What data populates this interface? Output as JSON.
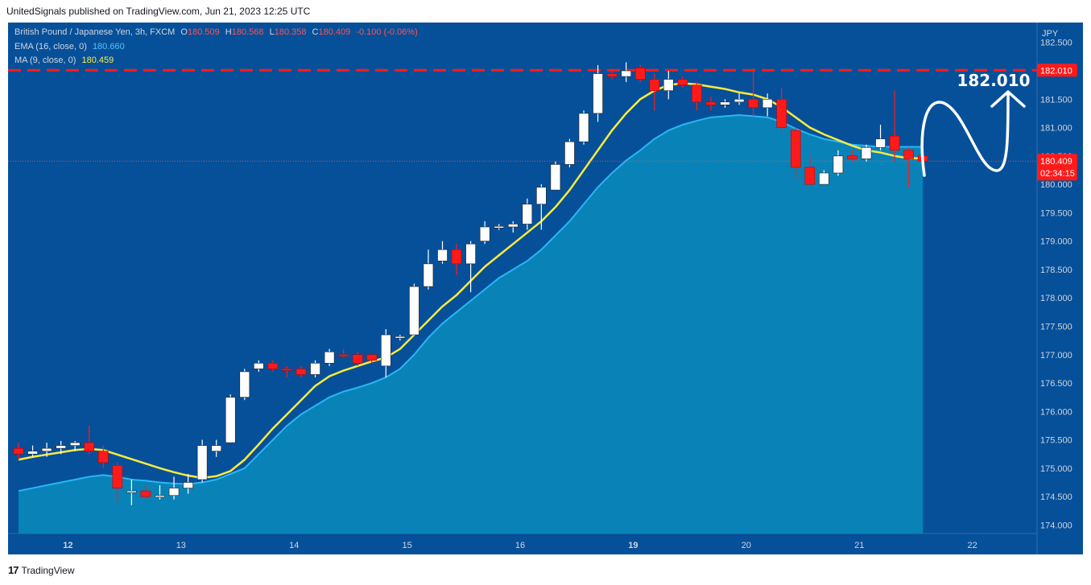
{
  "header": {
    "publisher_line": "UnitedSignals published on TradingView.com, Jun 21, 2023 12:25 UTC"
  },
  "legend": {
    "symbol": "British Pound / Japanese Yen, 3h, FXCM",
    "open_label": "O",
    "open": "180.509",
    "high_label": "H",
    "high": "180.568",
    "low_label": "L",
    "low": "180.358",
    "close_label": "C",
    "close": "180.409",
    "change": "-0.100 (-0.06%)",
    "ema_label": "EMA (16, close, 0)",
    "ema_value": "180.660",
    "ma_label": "MA (9, close, 0)",
    "ma_value": "180.459"
  },
  "footer": {
    "brand": "TradingView"
  },
  "chart_data": {
    "type": "candlestick",
    "currency": "JPY",
    "ylim": [
      173.85,
      182.85
    ],
    "y_ticks": [
      "182.500",
      "182.010",
      "181.500",
      "181.000",
      "180.500",
      "180.000",
      "179.500",
      "179.000",
      "178.500",
      "178.000",
      "177.500",
      "177.000",
      "176.500",
      "176.000",
      "175.500",
      "175.000",
      "174.500",
      "174.000"
    ],
    "x_ticks": [
      {
        "label": "12",
        "index": 3.5,
        "bold": true
      },
      {
        "label": "13",
        "index": 11.5
      },
      {
        "label": "14",
        "index": 19.5
      },
      {
        "label": "15",
        "index": 27.5
      },
      {
        "label": "16",
        "index": 35.5
      },
      {
        "label": "19",
        "index": 43.5,
        "bold": true
      },
      {
        "label": "20",
        "index": 51.5
      },
      {
        "label": "21",
        "index": 59.5
      },
      {
        "label": "22",
        "index": 67.5
      }
    ],
    "resistance_line": {
      "value": 182.01,
      "label": "182.010",
      "color": "#ff1a1a"
    },
    "last_price": {
      "value": 180.409,
      "label": "180.409",
      "countdown": "02:34:15"
    },
    "candles": [
      {
        "o": 175.35,
        "h": 175.45,
        "l": 175.15,
        "c": 175.25
      },
      {
        "o": 175.25,
        "h": 175.4,
        "l": 175.2,
        "c": 175.3
      },
      {
        "o": 175.3,
        "h": 175.45,
        "l": 175.2,
        "c": 175.35
      },
      {
        "o": 175.35,
        "h": 175.48,
        "l": 175.25,
        "c": 175.4
      },
      {
        "o": 175.4,
        "h": 175.48,
        "l": 175.3,
        "c": 175.45
      },
      {
        "o": 175.45,
        "h": 175.75,
        "l": 175.25,
        "c": 175.3
      },
      {
        "o": 175.3,
        "h": 175.4,
        "l": 175.0,
        "c": 175.1
      },
      {
        "o": 175.05,
        "h": 175.1,
        "l": 174.4,
        "c": 174.65
      },
      {
        "o": 174.6,
        "h": 174.8,
        "l": 174.35,
        "c": 174.6
      },
      {
        "o": 174.6,
        "h": 174.7,
        "l": 174.45,
        "c": 174.5
      },
      {
        "o": 174.5,
        "h": 174.7,
        "l": 174.45,
        "c": 174.52
      },
      {
        "o": 174.52,
        "h": 174.85,
        "l": 174.45,
        "c": 174.65
      },
      {
        "o": 174.65,
        "h": 174.9,
        "l": 174.55,
        "c": 174.75
      },
      {
        "o": 174.8,
        "h": 175.5,
        "l": 174.75,
        "c": 175.4
      },
      {
        "o": 175.3,
        "h": 175.5,
        "l": 175.2,
        "c": 175.4
      },
      {
        "o": 175.45,
        "h": 176.3,
        "l": 175.45,
        "c": 176.25
      },
      {
        "o": 176.25,
        "h": 176.75,
        "l": 176.2,
        "c": 176.7
      },
      {
        "o": 176.75,
        "h": 176.9,
        "l": 176.7,
        "c": 176.85
      },
      {
        "o": 176.85,
        "h": 176.9,
        "l": 176.7,
        "c": 176.75
      },
      {
        "o": 176.75,
        "h": 176.8,
        "l": 176.6,
        "c": 176.73
      },
      {
        "o": 176.75,
        "h": 176.8,
        "l": 176.6,
        "c": 176.65
      },
      {
        "o": 176.65,
        "h": 176.9,
        "l": 176.6,
        "c": 176.85
      },
      {
        "o": 176.85,
        "h": 177.1,
        "l": 176.8,
        "c": 177.05
      },
      {
        "o": 177.0,
        "h": 177.1,
        "l": 176.95,
        "c": 176.98
      },
      {
        "o": 177.0,
        "h": 177.05,
        "l": 176.8,
        "c": 176.85
      },
      {
        "o": 177.0,
        "h": 177.0,
        "l": 176.85,
        "c": 176.9
      },
      {
        "o": 176.8,
        "h": 177.45,
        "l": 176.6,
        "c": 177.35
      },
      {
        "o": 177.3,
        "h": 177.35,
        "l": 177.25,
        "c": 177.32
      },
      {
        "o": 177.35,
        "h": 178.25,
        "l": 177.35,
        "c": 178.2
      },
      {
        "o": 178.2,
        "h": 178.85,
        "l": 178.15,
        "c": 178.6
      },
      {
        "o": 178.65,
        "h": 179.0,
        "l": 178.6,
        "c": 178.85
      },
      {
        "o": 178.85,
        "h": 178.95,
        "l": 178.4,
        "c": 178.6
      },
      {
        "o": 178.6,
        "h": 179.0,
        "l": 178.1,
        "c": 178.95
      },
      {
        "o": 179.0,
        "h": 179.35,
        "l": 178.95,
        "c": 179.25
      },
      {
        "o": 179.25,
        "h": 179.3,
        "l": 179.2,
        "c": 179.26
      },
      {
        "o": 179.25,
        "h": 179.35,
        "l": 179.15,
        "c": 179.3
      },
      {
        "o": 179.3,
        "h": 179.75,
        "l": 179.2,
        "c": 179.65
      },
      {
        "o": 179.65,
        "h": 180.0,
        "l": 179.2,
        "c": 179.95
      },
      {
        "o": 179.9,
        "h": 180.4,
        "l": 179.9,
        "c": 180.35
      },
      {
        "o": 180.35,
        "h": 180.8,
        "l": 180.3,
        "c": 180.75
      },
      {
        "o": 180.75,
        "h": 181.3,
        "l": 180.7,
        "c": 181.25
      },
      {
        "o": 181.25,
        "h": 182.1,
        "l": 181.1,
        "c": 181.95
      },
      {
        "o": 181.95,
        "h": 182.0,
        "l": 181.85,
        "c": 181.9
      },
      {
        "o": 181.9,
        "h": 182.15,
        "l": 181.8,
        "c": 182.0
      },
      {
        "o": 182.05,
        "h": 182.1,
        "l": 181.8,
        "c": 181.85
      },
      {
        "o": 181.85,
        "h": 181.95,
        "l": 181.3,
        "c": 181.65
      },
      {
        "o": 181.65,
        "h": 182.0,
        "l": 181.5,
        "c": 181.85
      },
      {
        "o": 181.85,
        "h": 181.9,
        "l": 181.7,
        "c": 181.75
      },
      {
        "o": 181.75,
        "h": 181.8,
        "l": 181.3,
        "c": 181.45
      },
      {
        "o": 181.45,
        "h": 181.55,
        "l": 181.3,
        "c": 181.4
      },
      {
        "o": 181.4,
        "h": 181.5,
        "l": 181.35,
        "c": 181.45
      },
      {
        "o": 181.45,
        "h": 181.6,
        "l": 181.4,
        "c": 181.5
      },
      {
        "o": 181.5,
        "h": 182.05,
        "l": 181.2,
        "c": 181.35
      },
      {
        "o": 181.35,
        "h": 181.6,
        "l": 181.2,
        "c": 181.5
      },
      {
        "o": 181.5,
        "h": 181.7,
        "l": 180.9,
        "c": 181.0
      },
      {
        "o": 180.95,
        "h": 181.0,
        "l": 180.1,
        "c": 180.3
      },
      {
        "o": 180.3,
        "h": 180.5,
        "l": 180.0,
        "c": 180.0
      },
      {
        "o": 180.0,
        "h": 180.25,
        "l": 180.0,
        "c": 180.2
      },
      {
        "o": 180.2,
        "h": 180.6,
        "l": 180.15,
        "c": 180.5
      },
      {
        "o": 180.5,
        "h": 180.6,
        "l": 180.4,
        "c": 180.45
      },
      {
        "o": 180.45,
        "h": 180.7,
        "l": 180.4,
        "c": 180.65
      },
      {
        "o": 180.65,
        "h": 181.05,
        "l": 180.6,
        "c": 180.8
      },
      {
        "o": 180.85,
        "h": 181.65,
        "l": 180.4,
        "c": 180.6
      },
      {
        "o": 180.6,
        "h": 180.65,
        "l": 179.95,
        "c": 180.45
      },
      {
        "o": 180.5,
        "h": 180.57,
        "l": 180.36,
        "c": 180.41
      }
    ],
    "ma": [
      175.15,
      175.2,
      175.24,
      175.28,
      175.32,
      175.34,
      175.32,
      175.24,
      175.16,
      175.08,
      175.0,
      174.93,
      174.87,
      174.83,
      174.86,
      174.95,
      175.15,
      175.42,
      175.7,
      175.95,
      176.2,
      176.45,
      176.62,
      176.72,
      176.8,
      176.88,
      176.95,
      177.1,
      177.35,
      177.6,
      177.85,
      178.05,
      178.3,
      178.55,
      178.75,
      178.95,
      179.15,
      179.35,
      179.6,
      179.9,
      180.25,
      180.6,
      180.95,
      181.25,
      181.5,
      181.65,
      181.75,
      181.78,
      181.76,
      181.72,
      181.68,
      181.62,
      181.58,
      181.5,
      181.36,
      181.18,
      181.0,
      180.88,
      180.78,
      180.68,
      180.6,
      180.56,
      180.5,
      180.46,
      180.46
    ],
    "ema": [
      174.6,
      174.65,
      174.7,
      174.75,
      174.8,
      174.85,
      174.88,
      174.85,
      174.8,
      174.78,
      174.75,
      174.73,
      174.72,
      174.75,
      174.8,
      174.9,
      175.0,
      175.25,
      175.5,
      175.75,
      175.95,
      176.1,
      176.25,
      176.35,
      176.42,
      176.5,
      176.6,
      176.75,
      177.0,
      177.3,
      177.55,
      177.75,
      177.95,
      178.15,
      178.35,
      178.5,
      178.65,
      178.85,
      179.1,
      179.35,
      179.65,
      179.95,
      180.2,
      180.42,
      180.6,
      180.8,
      180.95,
      181.05,
      181.12,
      181.18,
      181.2,
      181.22,
      181.2,
      181.18,
      181.1,
      180.98,
      180.88,
      180.8,
      180.75,
      180.7,
      180.68,
      180.66,
      180.66,
      180.66,
      180.66
    ]
  }
}
